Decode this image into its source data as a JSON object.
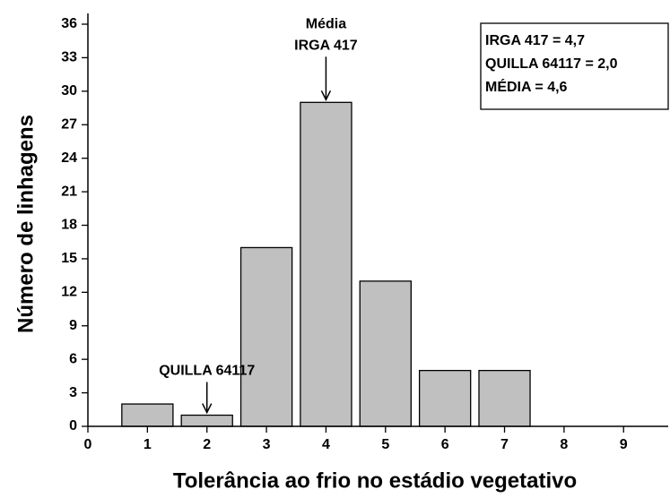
{
  "chart_data": {
    "type": "bar",
    "x_label": "Tolerância ao frio no estádio vegetativo",
    "y_label": "Número de linhagens",
    "x": [
      1,
      2,
      3,
      4,
      5,
      6,
      7
    ],
    "values": [
      2,
      1,
      16,
      29,
      13,
      5,
      5
    ],
    "color": "#c0c0c0",
    "xlim": [
      0,
      9.75
    ],
    "xticks": [
      0,
      1,
      2,
      3,
      4,
      5,
      6,
      7,
      8,
      9
    ],
    "ylim": [
      0,
      36
    ],
    "yticks": [
      0,
      3,
      6,
      9,
      12,
      15,
      18,
      21,
      24,
      27,
      30,
      33,
      36
    ],
    "annotations": [
      {
        "lines": [
          "Média",
          "IRGA 417"
        ],
        "x": 4
      },
      {
        "lines": [
          "QUILLA 64117"
        ],
        "x": 2
      }
    ],
    "text_box": [
      "IRGA 417 = 4,7",
      "QUILLA 64117 = 2,0",
      "MÉDIA = 4,6"
    ]
  }
}
